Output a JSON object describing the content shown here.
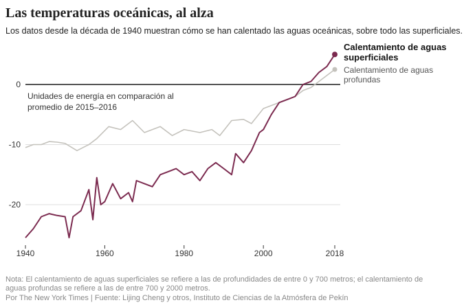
{
  "title": "Las temperaturas oceánicas, al alza",
  "subtitle": "Los datos desde la década de 1940 muestran cómo se han calentado las aguas oceánicas, sobre todo las superficiales.",
  "note": "Nota: El calentamiento de aguas superficiales se refiere a las de profundidades de entre 0 y 700 metros; el calentamiento de aguas profundas se refiere a las de entre 700 y 2000 metros.",
  "source": "Por The New York Times | Fuente: Lijing Cheng y otros, Instituto de Ciencias de la Atmósfera de Pekín",
  "chart_data": {
    "type": "line",
    "title": "Las temperaturas oceánicas, al alza",
    "annotation": "Unidades de energía en comparación al promedio de 2015–2016",
    "xlim": [
      1940,
      2018
    ],
    "ylim": [
      -26,
      5
    ],
    "x_ticks": [
      "1940",
      "1960",
      "1980",
      "2000",
      "2018"
    ],
    "y_ticks": [
      "0",
      "-10",
      "-20"
    ],
    "grid": true,
    "legend_placement": "right",
    "series": [
      {
        "name": "Calentamiento de aguas superficiales",
        "color": "#7b2a4f",
        "x": [
          1940,
          1942,
          1944,
          1946,
          1948,
          1950,
          1951,
          1952,
          1954,
          1956,
          1957,
          1958,
          1959,
          1960,
          1962,
          1964,
          1966,
          1967,
          1968,
          1970,
          1972,
          1974,
          1976,
          1978,
          1980,
          1982,
          1984,
          1986,
          1988,
          1990,
          1992,
          1993,
          1995,
          1997,
          1999,
          2000,
          2002,
          2004,
          2006,
          2008,
          2010,
          2012,
          2014,
          2016,
          2018
        ],
        "y": [
          -25.5,
          -24,
          -22,
          -21.5,
          -21.8,
          -22,
          -25.5,
          -22,
          -21,
          -17.5,
          -22.5,
          -15.5,
          -20,
          -19.5,
          -16.5,
          -19,
          -18,
          -19.5,
          -16,
          -16.5,
          -17,
          -15,
          -14.5,
          -14,
          -15,
          -14.5,
          -16,
          -14,
          -13,
          -14,
          -15,
          -11.5,
          -13,
          -11,
          -8,
          -7.5,
          -5,
          -3,
          -2.5,
          -2,
          0,
          0.5,
          2,
          3,
          5
        ]
      },
      {
        "name": "Calentamiento de aguas profundas",
        "color": "#c4c2bc",
        "x": [
          1940,
          1942,
          1944,
          1946,
          1948,
          1950,
          1953,
          1956,
          1958,
          1961,
          1964,
          1967,
          1970,
          1974,
          1977,
          1980,
          1984,
          1987,
          1989,
          1992,
          1995,
          1997,
          2000,
          2004,
          2008,
          2010,
          2012,
          2014,
          2016,
          2018
        ],
        "y": [
          -10.5,
          -10,
          -10,
          -9.5,
          -9.6,
          -9.8,
          -11,
          -10,
          -9,
          -7,
          -7.5,
          -6,
          -8,
          -7,
          -8.5,
          -7.5,
          -8,
          -7.5,
          -8.5,
          -6,
          -5.8,
          -6.5,
          -4,
          -3,
          -2,
          -1,
          -0.5,
          0.5,
          1.5,
          2.5
        ]
      }
    ]
  }
}
